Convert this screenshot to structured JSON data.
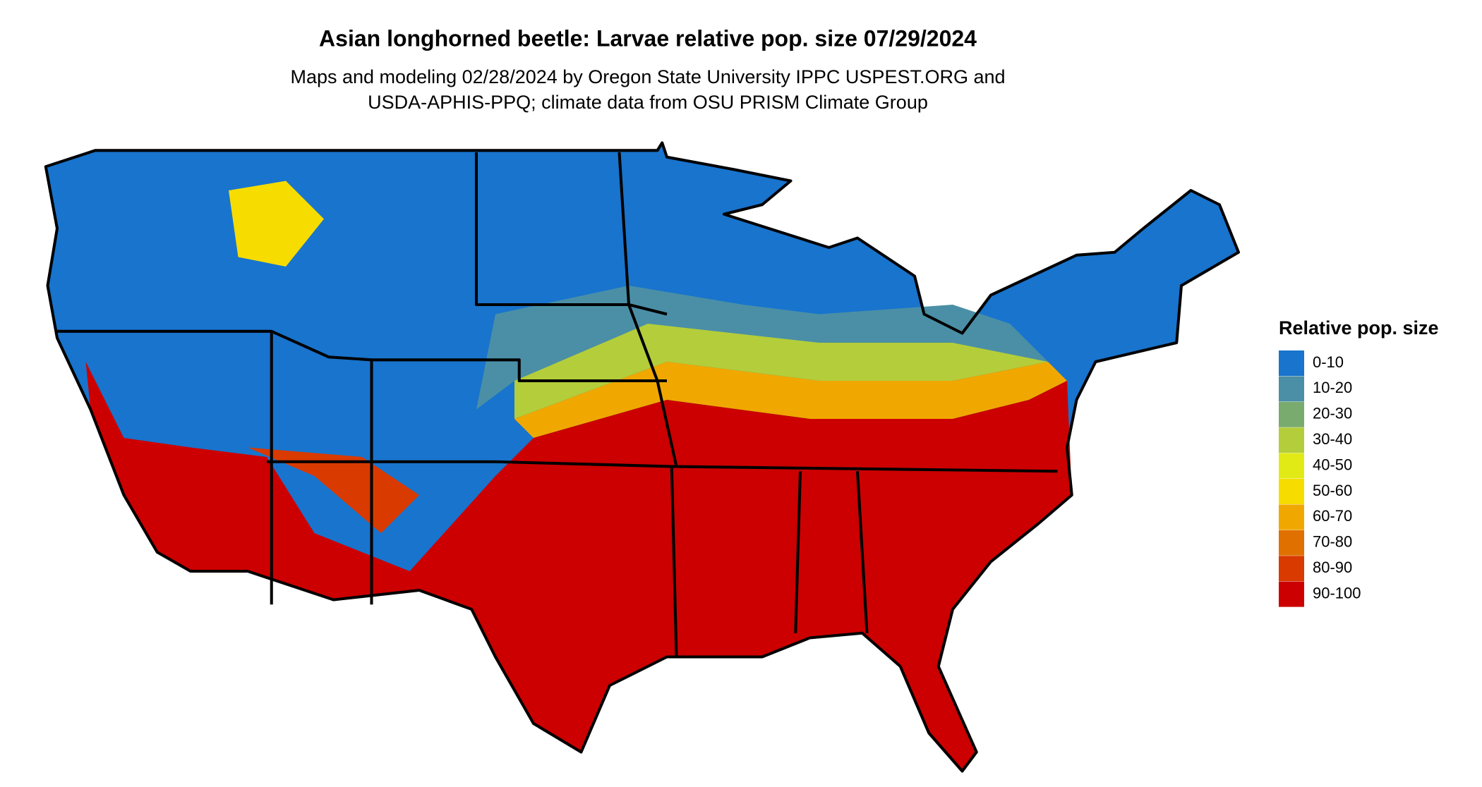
{
  "title": "Asian longhorned beetle: Larvae relative pop. size 07/29/2024",
  "subtitle": [
    "Maps and modeling 02/28/2024 by Oregon State University IPPC USPEST.ORG and",
    "USDA-APHIS-PPQ; climate data from OSU PRISM Climate Group"
  ],
  "legend": {
    "title": "Relative pop. size",
    "items": [
      {
        "label": "0-10",
        "color": "#1874cd"
      },
      {
        "label": "10-20",
        "color": "#4a8fa6"
      },
      {
        "label": "20-30",
        "color": "#7aab6e"
      },
      {
        "label": "30-40",
        "color": "#b4cd3a"
      },
      {
        "label": "40-50",
        "color": "#e2ea16"
      },
      {
        "label": "50-60",
        "color": "#f7dc00"
      },
      {
        "label": "60-70",
        "color": "#f0a800"
      },
      {
        "label": "70-80",
        "color": "#e07000"
      },
      {
        "label": "80-90",
        "color": "#d83a00"
      },
      {
        "label": "90-100",
        "color": "#cc0000"
      }
    ]
  }
}
